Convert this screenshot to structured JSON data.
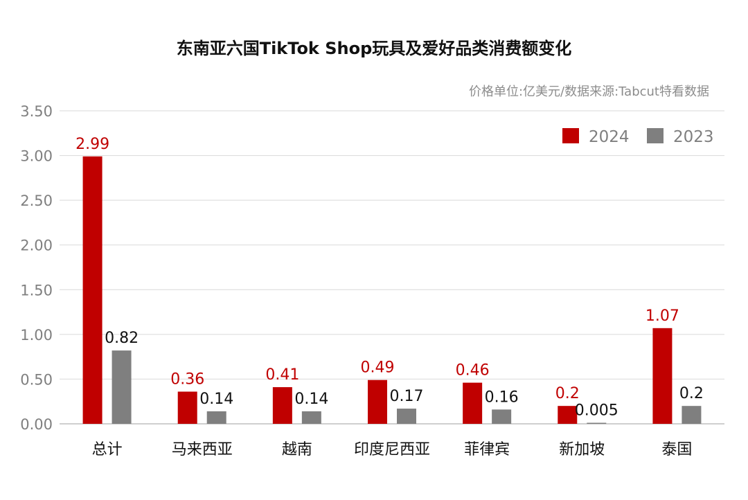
{
  "chart_data": {
    "type": "bar",
    "title": "东南亚六国TikTok Shop玩具及爱好品类消费额变化",
    "subtitle": "价格单位:亿美元/数据来源:Tabcut特看数据",
    "categories": [
      "总计",
      "马来西亚",
      "越南",
      "印度尼西亚",
      "菲律宾",
      "新加坡",
      "泰国"
    ],
    "series": [
      {
        "name": "2024",
        "color": "#c00000",
        "label_color": "#c00000",
        "values": [
          2.99,
          0.36,
          0.41,
          0.49,
          0.46,
          0.2,
          1.07
        ],
        "labels": [
          "2.99",
          "0.36",
          "0.41",
          "0.49",
          "0.46",
          "0.2",
          "1.07"
        ]
      },
      {
        "name": "2023",
        "color": "#7f7f7f",
        "label_color": "#111111",
        "values": [
          0.82,
          0.14,
          0.14,
          0.17,
          0.16,
          0.005,
          0.2
        ],
        "labels": [
          "0.82",
          "0.14",
          "0.14",
          "0.17",
          "0.16",
          "0.005",
          "0.2"
        ]
      }
    ],
    "ylim": [
      0,
      3.5
    ],
    "yticks": [
      "0.00",
      "0.50",
      "1.00",
      "1.50",
      "2.00",
      "2.50",
      "3.00",
      "3.50"
    ],
    "grid": true,
    "legend_position": "top-right"
  }
}
